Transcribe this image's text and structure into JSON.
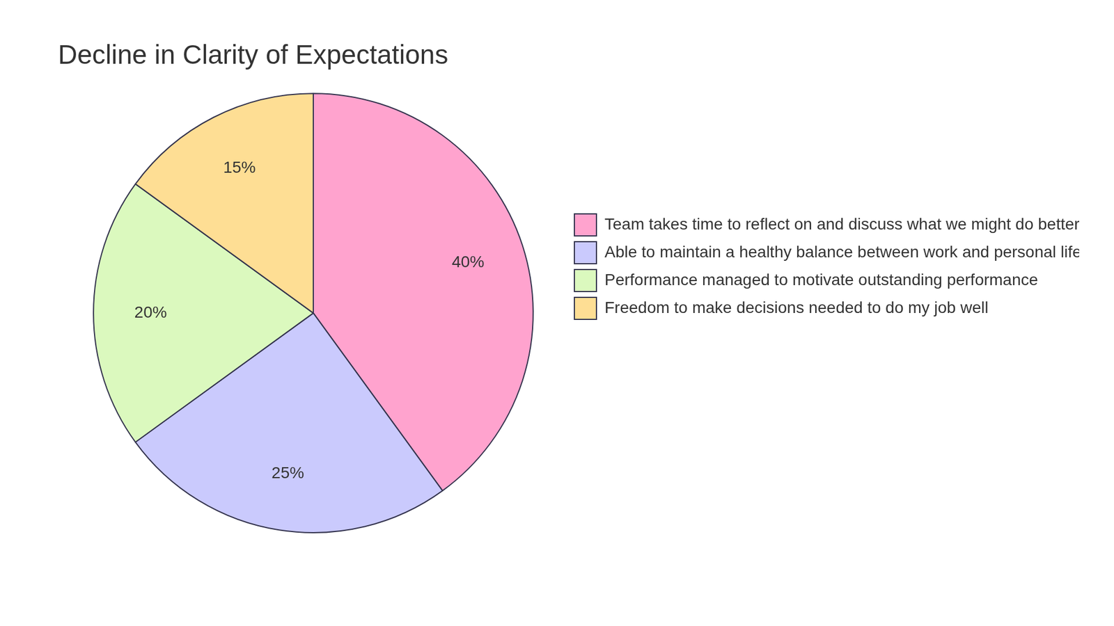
{
  "chart_data": {
    "type": "pie",
    "title": "Decline in Clarity of Expectations",
    "categories": [
      "Team takes time to reflect on and discuss what we might do better",
      "Able to maintain a healthy balance between work and personal life",
      "Performance managed to motivate outstanding performance",
      "Freedom to make decisions needed to do my job well"
    ],
    "values": [
      40,
      25,
      20,
      15
    ],
    "value_labels": [
      "40%",
      "25%",
      "20%",
      "15%"
    ],
    "colors": [
      "#FFA3CE",
      "#CACAFD",
      "#DBF9BE",
      "#FEDE94"
    ],
    "legend": "right",
    "data_labels": true
  }
}
